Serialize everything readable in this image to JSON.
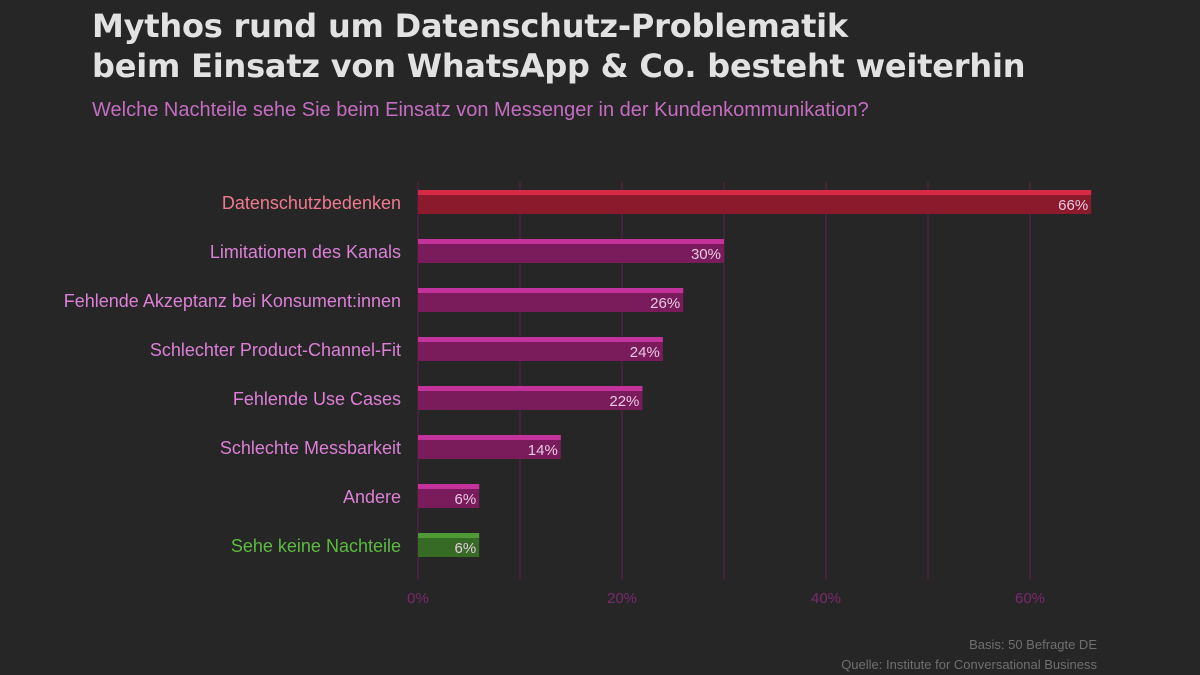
{
  "header": {
    "title_line1": "Mythos rund um Datenschutz-Problematik",
    "title_line2": "beim Einsatz von WhatsApp & Co. besteht weiterhin",
    "subtitle": "Welche Nachteile sehe Sie beim Einsatz von Messenger in der Kundenkommunikation?"
  },
  "chart_data": {
    "type": "bar",
    "orientation": "horizontal",
    "categories": [
      "Datenschutzbedenken",
      "Limitationen des Kanals",
      "Fehlende Akzeptanz bei Konsument:innen",
      "Schlechter Product-Channel-Fit",
      "Fehlende Use Cases",
      "Schlechte Messbarkeit",
      "Andere",
      "Sehe keine Nachteile"
    ],
    "values": [
      66,
      30,
      26,
      24,
      22,
      14,
      6,
      6
    ],
    "value_labels": [
      "66%",
      "30%",
      "26%",
      "24%",
      "22%",
      "14%",
      "6%",
      "6%"
    ],
    "x_ticks": [
      0,
      20,
      40,
      60
    ],
    "x_tick_labels": [
      "0%",
      "20%",
      "40%",
      "60%"
    ],
    "xlim": [
      0,
      66
    ],
    "grid": "vertical every 10%",
    "highlight": {
      "Datenschutzbedenken": "red",
      "Sehe keine Nachteile": "green"
    }
  },
  "colors": {
    "background": "#262626",
    "bar_default": "#7a1b5c",
    "bar_default_top": "#c3339b",
    "bar_highlight": "#8b1a2d",
    "bar_highlight_top": "#d42a45",
    "bar_green": "#356b24",
    "bar_green_top": "#4f9a35",
    "label_default": "#dc7fd6",
    "label_highlight": "#ef7a8e",
    "label_green": "#5bbb3e",
    "grid": "#4e2043",
    "tick": "#7a2a6e"
  },
  "footer": {
    "basis": "Basis: 50 Befragte DE",
    "source": "Quelle: Institute for Conversational Business"
  }
}
